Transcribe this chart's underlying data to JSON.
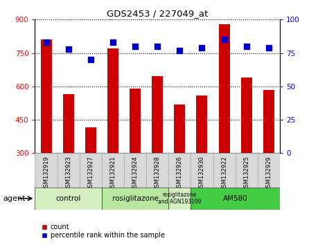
{
  "title": "GDS2453 / 227049_at",
  "samples": [
    "GSM132919",
    "GSM132923",
    "GSM132927",
    "GSM132921",
    "GSM132924",
    "GSM132928",
    "GSM132926",
    "GSM132930",
    "GSM132922",
    "GSM132925",
    "GSM132929"
  ],
  "counts": [
    810,
    565,
    415,
    770,
    590,
    645,
    520,
    560,
    880,
    640,
    585
  ],
  "percentiles": [
    83,
    78,
    70,
    83,
    80,
    80,
    77,
    79,
    85,
    80,
    79
  ],
  "ylim_left": [
    300,
    900
  ],
  "ylim_right": [
    0,
    100
  ],
  "yticks_left": [
    300,
    450,
    600,
    750,
    900
  ],
  "yticks_right": [
    0,
    25,
    50,
    75,
    100
  ],
  "bar_color": "#cc0000",
  "dot_color": "#0000cc",
  "group_defs": [
    {
      "start": 0,
      "end": 2,
      "label": "control",
      "color": "#d4f0c0"
    },
    {
      "start": 3,
      "end": 5,
      "label": "rosiglitazone",
      "color": "#b8e8a0"
    },
    {
      "start": 6,
      "end": 6,
      "label": "rosiglitazone\nand AGN193109",
      "color": "#d4f0c0",
      "fontsize": 5.5
    },
    {
      "start": 7,
      "end": 10,
      "label": "AM580",
      "color": "#44cc44"
    }
  ],
  "agent_label": "agent",
  "legend_count": "count",
  "legend_percentile": "percentile rank within the sample",
  "background_color": "#ffffff",
  "tick_bg": "#d8d8d8",
  "tick_edge": "#aaaaaa"
}
